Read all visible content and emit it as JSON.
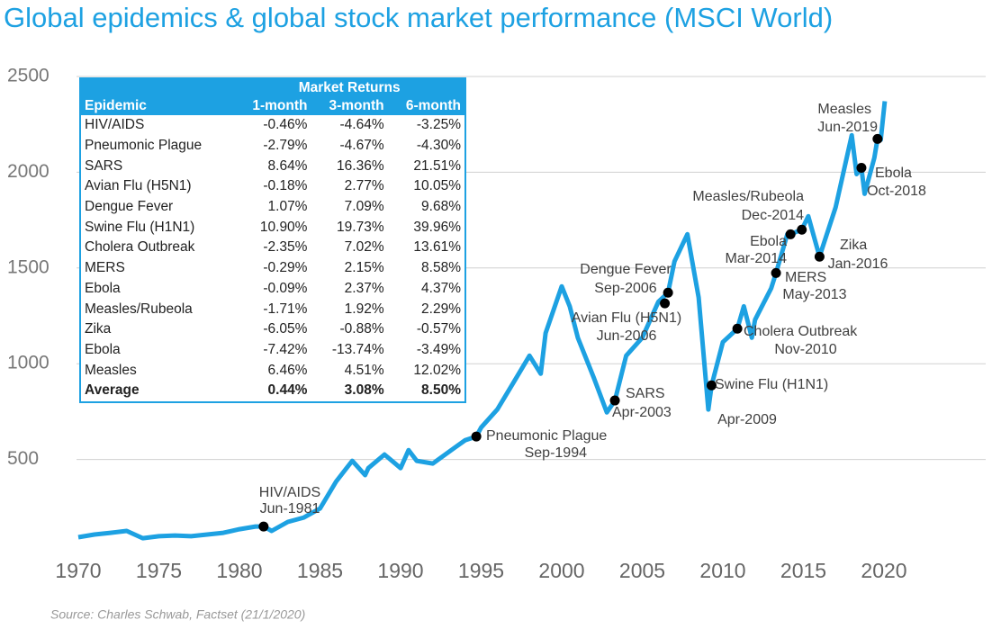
{
  "chart_data": {
    "type": "line",
    "title": "Global epidemics & global stock market performance (MSCI World)",
    "source": "Source: Charles Schwab, Factset (21/1/2020)",
    "xlim": [
      1970,
      2020
    ],
    "xticks": [
      1970,
      1975,
      1980,
      1985,
      1990,
      1995,
      2000,
      2005,
      2010,
      2015,
      2020
    ],
    "ylim": [
      0,
      2500
    ],
    "yticks": [
      500,
      1000,
      1500,
      2000,
      2500
    ],
    "grid": true,
    "series": [
      {
        "name": "MSCI World",
        "color": "#1da1e2",
        "x": [
          1970,
          1971,
          1972,
          1973,
          1974,
          1975,
          1976,
          1977,
          1978,
          1979,
          1980,
          1981,
          1981.5,
          1982,
          1983,
          1984,
          1985,
          1986,
          1987,
          1987.8,
          1988,
          1989,
          1990,
          1990.5,
          1991,
          1992,
          1993,
          1994,
          1994.7,
          1995,
          1996,
          1997,
          1998,
          1998.7,
          1999,
          2000,
          2000.5,
          2001,
          2002,
          2002.8,
          2003.3,
          2004,
          2005,
          2006,
          2006.6,
          2007,
          2007.8,
          2008.5,
          2009.1,
          2009.3,
          2010,
          2010.9,
          2011.3,
          2011.8,
          2012,
          2013,
          2013.3,
          2014,
          2014.2,
          2014.9,
          2015.3,
          2016,
          2017,
          2018,
          2018.3,
          2018.6,
          2018.8,
          2019.4,
          2019.6,
          2019.8,
          2020.05
        ],
        "values": [
          94,
          108,
          117,
          127,
          89,
          99,
          103,
          99,
          108,
          117,
          136,
          150,
          150,
          127,
          174,
          197,
          244,
          385,
          493,
          418,
          455,
          526,
          455,
          549,
          493,
          479,
          540,
          600,
          620,
          667,
          761,
          901,
          1042,
          948,
          1160,
          1404,
          1300,
          1136,
          925,
          746,
          808,
          1042,
          1136,
          1324,
          1371,
          1535,
          1676,
          1347,
          761,
          887,
          1113,
          1183,
          1300,
          1136,
          1230,
          1394,
          1474,
          1676,
          1676,
          1700,
          1770,
          1559,
          1817,
          2193,
          1990,
          2023,
          1887,
          2075,
          2174,
          2169,
          2371
        ]
      }
    ],
    "events": [
      {
        "name": "HIV/AIDS",
        "date": "Jun-1981",
        "x": 1981.5,
        "value": 150
      },
      {
        "name": "Pneumonic Plague",
        "date": "Sep-1994",
        "x": 1994.7,
        "value": 620
      },
      {
        "name": "SARS",
        "date": "Apr-2003",
        "x": 2003.3,
        "value": 808
      },
      {
        "name": "Avian Flu (H5N1)",
        "date": "Jun-2006",
        "x": 2006.4,
        "value": 1315
      },
      {
        "name": "Dengue Fever",
        "date": "Sep-2006",
        "x": 2006.6,
        "value": 1371
      },
      {
        "name": "Swine Flu (H1N1)",
        "date": "Apr-2009",
        "x": 2009.3,
        "value": 887
      },
      {
        "name": "Cholera Outbreak",
        "date": "Nov-2010",
        "x": 2010.9,
        "value": 1183
      },
      {
        "name": "MERS",
        "date": "May-2013",
        "x": 2013.3,
        "value": 1474
      },
      {
        "name": "Ebola",
        "date": "Mar-2014",
        "x": 2014.2,
        "value": 1676
      },
      {
        "name": "Measles/Rubeola",
        "date": "Dec-2014",
        "x": 2014.9,
        "value": 1700
      },
      {
        "name": "Zika",
        "date": "Jan-2016",
        "x": 2016,
        "value": 1559
      },
      {
        "name": "Ebola",
        "date": "Oct-2018",
        "x": 2018.6,
        "value": 2023
      },
      {
        "name": "Measles",
        "date": "Jun-2019",
        "x": 2019.6,
        "value": 2174
      }
    ]
  },
  "table": {
    "title": "Market Returns",
    "columns": [
      "Epidemic",
      "1-month",
      "3-month",
      "6-month"
    ],
    "rows": [
      [
        "HIV/AIDS",
        "-0.46%",
        "-4.64%",
        "-3.25%"
      ],
      [
        "Pneumonic Plague",
        "-2.79%",
        "-4.67%",
        "-4.30%"
      ],
      [
        "SARS",
        "8.64%",
        "16.36%",
        "21.51%"
      ],
      [
        "Avian Flu (H5N1)",
        "-0.18%",
        "2.77%",
        "10.05%"
      ],
      [
        "Dengue Fever",
        "1.07%",
        "7.09%",
        "9.68%"
      ],
      [
        "Swine Flu (H1N1)",
        "10.90%",
        "19.73%",
        "39.96%"
      ],
      [
        "Cholera Outbreak",
        "-2.35%",
        "7.02%",
        "13.61%"
      ],
      [
        "MERS",
        "-0.29%",
        "2.15%",
        "8.58%"
      ],
      [
        "Ebola",
        "-0.09%",
        "2.37%",
        "4.37%"
      ],
      [
        "Measles/Rubeola",
        "-1.71%",
        "1.92%",
        "2.29%"
      ],
      [
        "Zika",
        "-6.05%",
        "-0.88%",
        "-0.57%"
      ],
      [
        "Ebola",
        "-7.42%",
        "-13.74%",
        "-3.49%"
      ],
      [
        "Measles",
        "6.46%",
        "4.51%",
        "12.02%"
      ]
    ],
    "footer": [
      "Average",
      "0.44%",
      "3.08%",
      "8.50%"
    ]
  }
}
